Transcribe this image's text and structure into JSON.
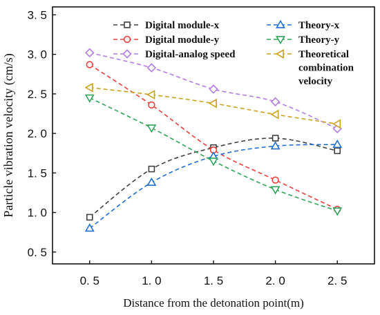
{
  "chart_data": {
    "type": "line",
    "xlabel": "Distance from the detonation point(m)",
    "ylabel": "Particle vibration velocity (cm/s)",
    "xlim": [
      0.2,
      2.8
    ],
    "ylim": [
      0.35,
      3.6
    ],
    "x_ticks": [
      "0. 5",
      "1. 0",
      "1. 5",
      "2. 0",
      "2. 5"
    ],
    "x_tick_values": [
      0.5,
      1.0,
      1.5,
      2.0,
      2.5
    ],
    "y_ticks": [
      "0. 5",
      "1. 0",
      "1. 5",
      "2. 0",
      "2. 5",
      "3. 0",
      "3. 5"
    ],
    "y_tick_values": [
      0.5,
      1.0,
      1.5,
      2.0,
      2.5,
      3.0,
      3.5
    ],
    "legend_position": "top-right, two columns",
    "x": [
      0.5,
      1.0,
      1.5,
      2.0,
      2.5
    ],
    "series": [
      {
        "name": "Digital module-x",
        "values": [
          0.94,
          1.55,
          1.82,
          1.94,
          1.78
        ],
        "color": "#404040",
        "marker": "square"
      },
      {
        "name": "Digital module-y",
        "values": [
          2.87,
          2.36,
          1.79,
          1.41,
          1.04
        ],
        "color": "#e8403a",
        "marker": "circle"
      },
      {
        "name": "Digital-analog speed",
        "values": [
          3.02,
          2.83,
          2.56,
          2.4,
          2.06
        ],
        "color": "#b27ce3",
        "marker": "diamond"
      },
      {
        "name": "Theory-x",
        "values": [
          0.8,
          1.38,
          1.71,
          1.84,
          1.86
        ],
        "color": "#1f6fd0",
        "marker": "triangle-up"
      },
      {
        "name": "Theory-y",
        "values": [
          2.45,
          2.07,
          1.65,
          1.29,
          1.02
        ],
        "color": "#2ea35a",
        "marker": "triangle-down"
      },
      {
        "name": "Theoretical combination velocity",
        "name_lines": [
          "Theoretical",
          "combination",
          "velocity"
        ],
        "values": [
          2.58,
          2.49,
          2.38,
          2.24,
          2.12
        ],
        "color": "#c9a21d",
        "marker": "triangle-left"
      }
    ]
  }
}
